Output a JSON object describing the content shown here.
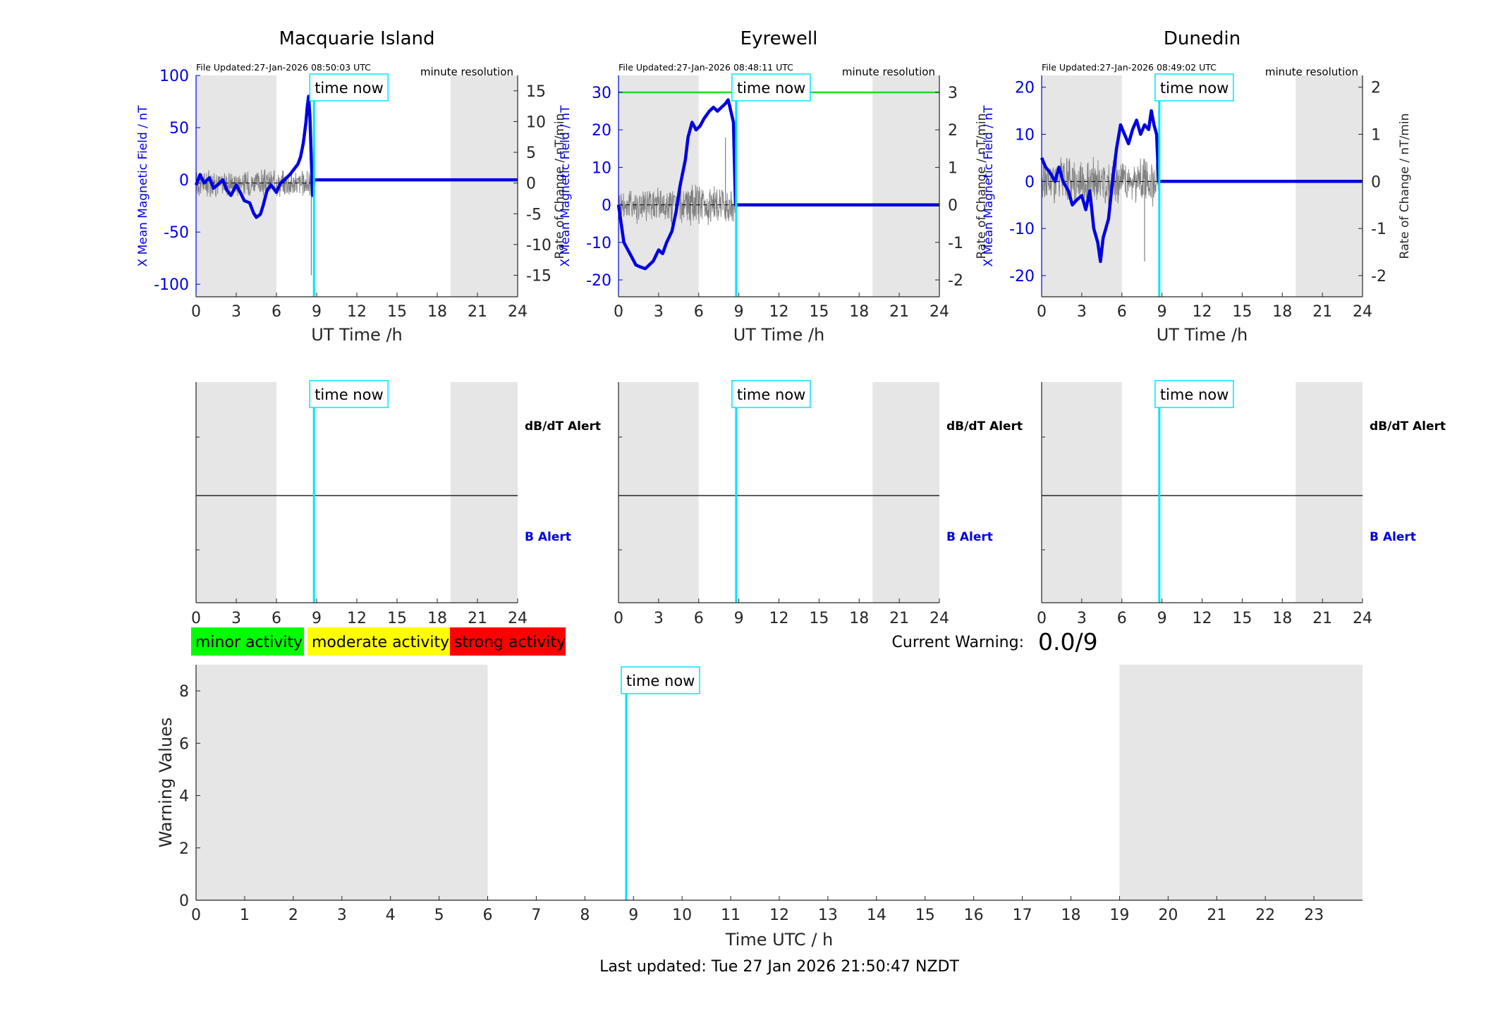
{
  "colors": {
    "shade": "#e6e6e6",
    "time_now": "#00e5ff",
    "field": "#0000e0",
    "rate": "#808080",
    "threshold": "#22dd22",
    "axis": "#262626",
    "minor": "#00ff00",
    "moderate": "#ffff00",
    "strong": "#ff0000"
  },
  "stations": [
    {
      "title": "Macquarie Island",
      "file_updated": "File Updated:27-Jan-2026 08:50:03 UTC",
      "resolution": "minute resolution",
      "ylabel_left": "X Mean Magnetic Field / nT",
      "ylabel_right": "Rate of Change / nT/min",
      "xlabel": "UT Time /h",
      "left_ticks": [
        "100",
        "50",
        "0",
        "-50",
        "-100"
      ],
      "right_ticks": [
        "15",
        "10",
        "5",
        "0",
        "-5",
        "-10",
        "-15"
      ],
      "alert_db": "dB/dT Alert",
      "alert_b": "B Alert",
      "time_now_label": "time now"
    },
    {
      "title": "Eyrewell",
      "file_updated": "File Updated:27-Jan-2026 08:48:11 UTC",
      "resolution": "minute resolution",
      "ylabel_left": "X Mean Magnetic Field / nT",
      "ylabel_right": "Rate of Change / nT/min",
      "xlabel": "UT Time /h",
      "left_ticks": [
        "30",
        "20",
        "10",
        "0",
        "-10",
        "-20"
      ],
      "right_ticks": [
        "3",
        "2",
        "1",
        "0",
        "-1",
        "-2"
      ],
      "alert_db": "dB/dT Alert",
      "alert_b": "B Alert",
      "time_now_label": "time now"
    },
    {
      "title": "Dunedin",
      "file_updated": "File Updated:27-Jan-2026 08:49:02 UTC",
      "resolution": "minute resolution",
      "ylabel_left": "X Mean Magnetic Field / nT",
      "ylabel_right": "Rate of Change / nT/min",
      "xlabel": "UT Time /h",
      "left_ticks": [
        "20",
        "10",
        "0",
        "-10",
        "-20"
      ],
      "right_ticks": [
        "2",
        "1",
        "0",
        "-1",
        "-2"
      ],
      "alert_db": "dB/dT Alert",
      "alert_b": "B Alert",
      "time_now_label": "time now"
    }
  ],
  "x_ticks_station": [
    "0",
    "3",
    "6",
    "9",
    "12",
    "15",
    "18",
    "21",
    "24"
  ],
  "legend": {
    "minor": "minor activity",
    "moderate": "moderate activity",
    "strong": "strong activity"
  },
  "current_warning": {
    "label": "Current Warning:",
    "value": "0.0/9"
  },
  "bottom": {
    "ylabel": "Warning Values",
    "xlabel": "Time UTC / h",
    "y_ticks": [
      "0",
      "2",
      "4",
      "6",
      "8"
    ],
    "x_ticks": [
      "0",
      "1",
      "2",
      "3",
      "4",
      "5",
      "6",
      "7",
      "8",
      "9",
      "10",
      "11",
      "12",
      "13",
      "14",
      "15",
      "16",
      "17",
      "18",
      "19",
      "20",
      "21",
      "22",
      "23"
    ],
    "time_now_label": "time now"
  },
  "footer": "Last updated: Tue 27 Jan 2026 21:50:47 NZDT",
  "chart_data": [
    {
      "type": "line",
      "title": "Macquarie Island",
      "xlabel": "UT Time /h",
      "ylabel": "X Mean Magnetic Field / nT",
      "ylabel_right": "Rate of Change / nT/min",
      "xlim": [
        0,
        24
      ],
      "ylim": [
        -112,
        100
      ],
      "ylim_right": [
        -18.5,
        17.5
      ],
      "night_shading_h": [
        [
          0,
          6
        ],
        [
          19,
          24
        ]
      ],
      "time_now_h": 8.8,
      "series": [
        {
          "axis": "left",
          "x": [
            0,
            0.3,
            0.6,
            1,
            1.3,
            1.6,
            2,
            2.3,
            2.6,
            3,
            3.3,
            3.6,
            4,
            4.3,
            4.5,
            4.8,
            5,
            5.3,
            5.6,
            6,
            6.3,
            6.6,
            7,
            7.3,
            7.6,
            7.8,
            8,
            8.1,
            8.2,
            8.3,
            8.4,
            8.5,
            8.6,
            8.7,
            8.8,
            9,
            12,
            15,
            18,
            21,
            24
          ],
          "y": [
            -5,
            5,
            -3,
            2,
            -8,
            -5,
            0,
            -10,
            -15,
            -5,
            -12,
            -20,
            -22,
            -32,
            -36,
            -33,
            -25,
            -10,
            -5,
            -12,
            -3,
            0,
            5,
            10,
            15,
            22,
            35,
            45,
            55,
            70,
            80,
            60,
            20,
            -15,
            0,
            0,
            0,
            0,
            0,
            0,
            0
          ]
        },
        {
          "axis": "right",
          "kind": "noisy",
          "x_start": 0,
          "x_end": 8.8,
          "amplitude": 2.5,
          "after": 0
        },
        {
          "axis": "right",
          "kind": "spike",
          "x": 8.6,
          "y": -15
        }
      ]
    },
    {
      "type": "line",
      "title": "Eyrewell",
      "xlabel": "UT Time /h",
      "ylabel": "X Mean Magnetic Field / nT",
      "ylabel_right": "Rate of Change / nT/min",
      "xlim": [
        0,
        24
      ],
      "ylim": [
        -24.5,
        34.5
      ],
      "ylim_right": [
        -2.45,
        3.45
      ],
      "night_shading_h": [
        [
          0,
          6
        ],
        [
          19,
          24
        ]
      ],
      "threshold_right": 3,
      "time_now_h": 8.8,
      "series": [
        {
          "axis": "left",
          "x": [
            0,
            0.2,
            0.4,
            0.7,
            1,
            1.3,
            1.6,
            2,
            2.3,
            2.6,
            3,
            3.3,
            3.6,
            4,
            4.3,
            4.6,
            5,
            5.2,
            5.5,
            5.8,
            6.1,
            6.4,
            6.8,
            7.1,
            7.4,
            7.7,
            8,
            8.2,
            8.4,
            8.6,
            8.75,
            8.8,
            9,
            12,
            15,
            18,
            21,
            24
          ],
          "y": [
            0,
            -5,
            -10,
            -12,
            -14,
            -16,
            -16.5,
            -17,
            -16,
            -15,
            -12,
            -13,
            -10,
            -7,
            -2,
            5,
            12,
            18,
            22,
            20,
            21,
            23,
            25,
            26,
            25,
            26,
            27,
            28,
            25,
            22,
            0,
            0,
            0,
            0,
            0,
            0,
            0,
            0
          ]
        },
        {
          "axis": "right",
          "kind": "noisy",
          "x_start": 0,
          "x_end": 8.8,
          "amplitude": 0.6,
          "after": 0
        },
        {
          "axis": "right",
          "kind": "spike",
          "x": 8.0,
          "y": 1.8
        }
      ]
    },
    {
      "type": "line",
      "title": "Dunedin",
      "xlabel": "UT Time /h",
      "ylabel": "X Mean Magnetic Field / nT",
      "ylabel_right": "Rate of Change / nT/min",
      "xlim": [
        0,
        24
      ],
      "ylim": [
        -24.5,
        22.5
      ],
      "ylim_right": [
        -2.45,
        2.25
      ],
      "night_shading_h": [
        [
          0,
          6
        ],
        [
          19,
          24
        ]
      ],
      "time_now_h": 8.8,
      "series": [
        {
          "axis": "left",
          "x": [
            0,
            0.3,
            0.6,
            1,
            1.3,
            1.6,
            2,
            2.3,
            2.6,
            3,
            3.3,
            3.6,
            3.9,
            4.2,
            4.4,
            4.6,
            5,
            5.3,
            5.6,
            5.9,
            6.2,
            6.5,
            6.8,
            7.1,
            7.4,
            7.7,
            8,
            8.2,
            8.4,
            8.6,
            8.75,
            8.8,
            9,
            12,
            15,
            18,
            21,
            24
          ],
          "y": [
            5,
            3,
            2,
            0,
            3,
            0,
            -2,
            -5,
            -4,
            -3,
            -6,
            -2,
            -10,
            -13,
            -17,
            -12,
            -8,
            0,
            7,
            12,
            10,
            8,
            11,
            13,
            10,
            12,
            11,
            15,
            12,
            10,
            0,
            0,
            0,
            0,
            0,
            0,
            0,
            0
          ]
        },
        {
          "axis": "right",
          "kind": "noisy",
          "x_start": 0,
          "x_end": 8.8,
          "amplitude": 0.55,
          "after": 0
        },
        {
          "axis": "right",
          "kind": "spike",
          "x": 7.7,
          "y": -1.7
        }
      ]
    },
    {
      "type": "line",
      "title": "",
      "xlabel": "Time UTC / h",
      "ylabel": "Warning Values",
      "xlim": [
        0,
        24
      ],
      "ylim": [
        0,
        9
      ],
      "night_shading_h": [
        [
          0,
          6
        ],
        [
          19,
          24
        ]
      ],
      "time_now_h": 8.85,
      "series": []
    }
  ]
}
